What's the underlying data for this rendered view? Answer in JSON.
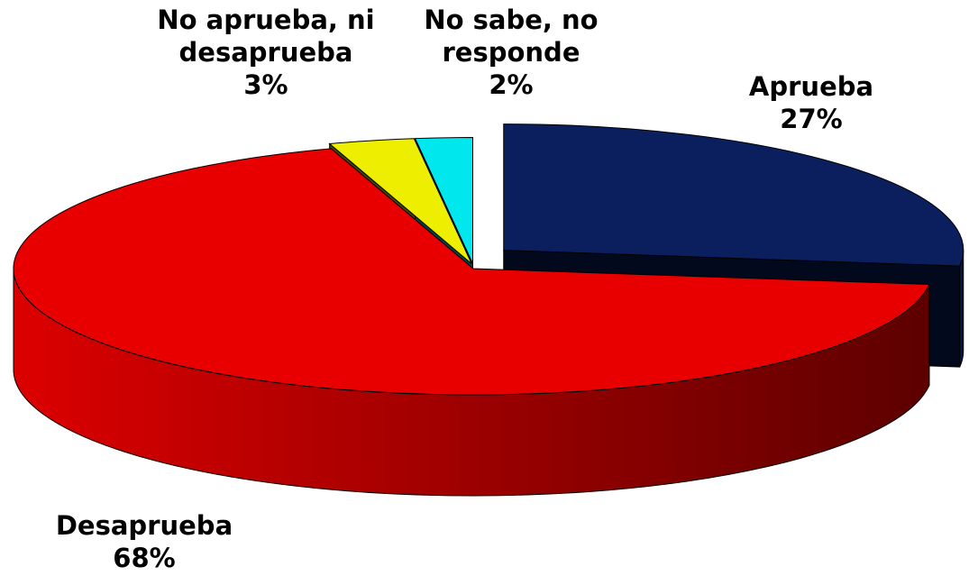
{
  "chart_data": {
    "type": "pie",
    "categories": [
      "Aprueba",
      "Desaprueba",
      "No aprueba, ni desaprueba",
      "No sabe, no responde"
    ],
    "values": [
      27,
      68,
      3,
      2
    ],
    "value_labels": [
      "27%",
      "68%",
      "3%",
      "2%"
    ],
    "colors": [
      "#0b1f5e",
      "#e80000",
      "#eeee00",
      "#00e8ee"
    ]
  }
}
